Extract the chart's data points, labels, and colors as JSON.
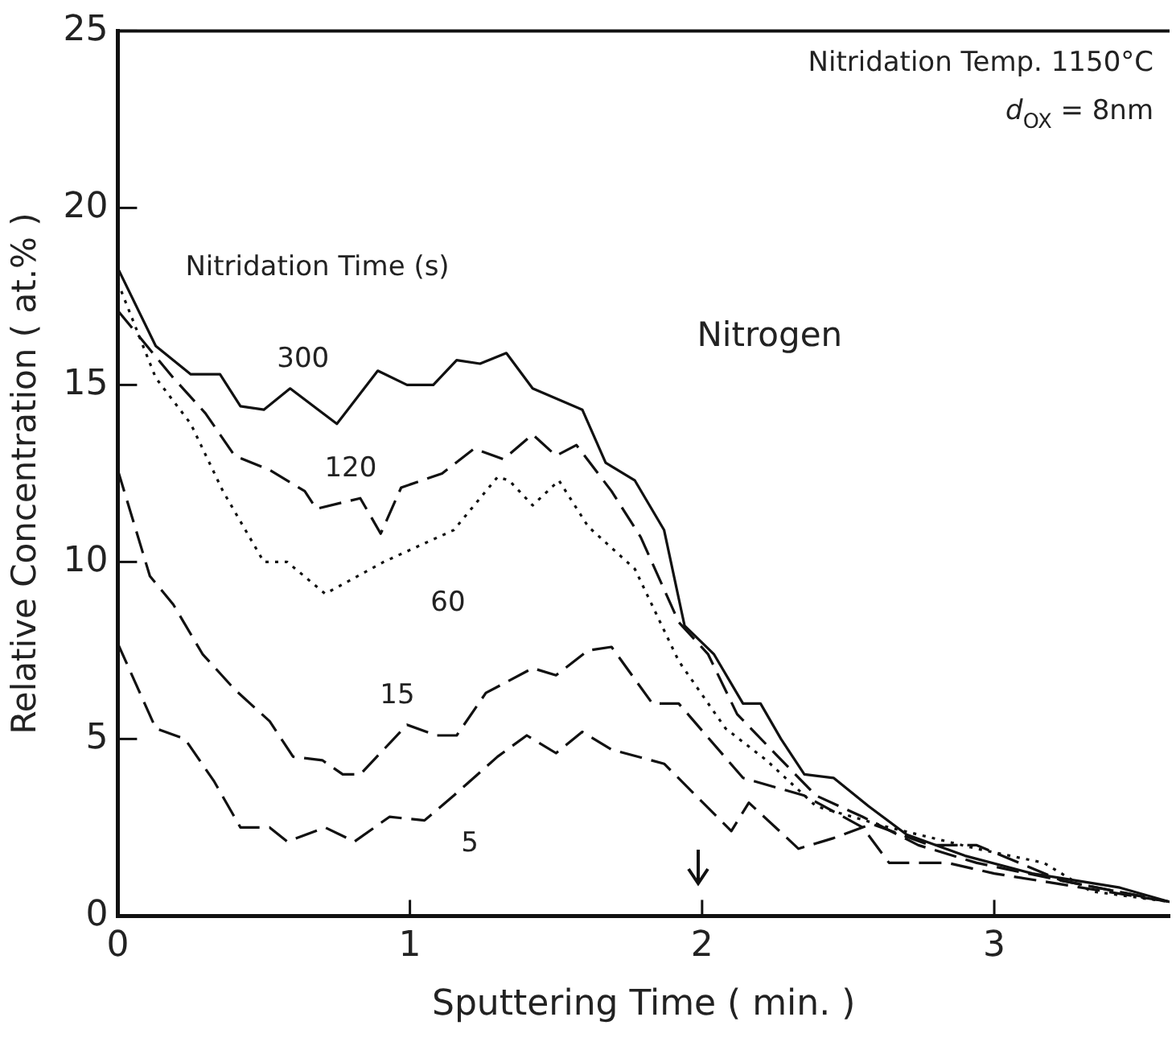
{
  "chart_data": {
    "type": "line",
    "xlabel": "Sputtering Time ( min. )",
    "ylabel": "Relative Concentration ( at.% )",
    "legend_title": "Nitridation Time (s)",
    "xlim": [
      0,
      3.6
    ],
    "xticks": [
      0,
      1,
      2,
      3
    ],
    "ylim": [
      0,
      25
    ],
    "yticks": [
      0,
      5,
      10,
      15,
      20,
      25
    ],
    "grid": false,
    "legend": false,
    "marker": "none",
    "series": [
      {
        "color": "#111111",
        "line_style": "solid",
        "x": [
          0,
          0.13,
          0.25,
          0.35,
          0.42,
          0.5,
          0.59,
          0.75,
          0.89,
          0.99,
          1.08,
          1.16,
          1.24,
          1.33,
          1.42,
          1.59,
          1.67,
          1.77,
          1.87,
          1.94,
          2.04,
          2.14,
          2.2,
          2.27,
          2.35,
          2.45,
          2.57,
          2.7,
          2.9,
          3.13,
          3.43,
          3.6
        ],
        "values": [
          18.3,
          16.1,
          15.3,
          15.3,
          14.4,
          14.3,
          14.9,
          13.9,
          15.4,
          15.0,
          15.0,
          15.7,
          15.6,
          15.9,
          14.9,
          14.3,
          12.8,
          12.3,
          10.9,
          8.2,
          7.4,
          6.0,
          6.0,
          5.0,
          4.0,
          3.9,
          3.1,
          2.3,
          1.7,
          1.2,
          0.8,
          0.4
        ]
      },
      {
        "color": "#111111",
        "line_style": "dashed",
        "x": [
          0,
          0.19,
          0.3,
          0.4,
          0.52,
          0.64,
          0.68,
          0.83,
          0.9,
          0.97,
          1.11,
          1.22,
          1.32,
          1.42,
          1.5,
          1.57,
          1.69,
          1.79,
          1.92,
          2.02,
          2.12,
          2.26,
          2.39,
          2.55,
          2.74,
          2.94,
          3.23,
          3.6
        ],
        "values": [
          17.1,
          15.2,
          14.2,
          13.0,
          12.6,
          12.0,
          11.5,
          11.8,
          10.8,
          12.1,
          12.5,
          13.2,
          12.9,
          13.6,
          13.0,
          13.3,
          12.0,
          10.7,
          8.3,
          7.4,
          5.7,
          4.5,
          3.4,
          2.8,
          2.0,
          1.5,
          1.0,
          0.4
        ]
      },
      {
        "color": "#111111",
        "line_style": "dotted",
        "x": [
          0,
          0.13,
          0.25,
          0.36,
          0.5,
          0.58,
          0.71,
          0.91,
          1.15,
          1.3,
          1.34,
          1.42,
          1.51,
          1.61,
          1.77,
          1.92,
          2.08,
          2.22,
          2.39,
          2.64,
          2.94,
          3.17,
          3.33,
          3.6
        ],
        "values": [
          17.9,
          15.2,
          13.9,
          12.0,
          10.0,
          10.0,
          9.1,
          10.0,
          10.9,
          12.4,
          12.3,
          11.6,
          12.3,
          11.0,
          9.8,
          7.2,
          5.3,
          4.4,
          3.1,
          2.5,
          1.9,
          1.5,
          0.7,
          0.4
        ]
      },
      {
        "color": "#111111",
        "line_style": "dashed",
        "x": [
          0,
          0.11,
          0.19,
          0.29,
          0.4,
          0.52,
          0.6,
          0.7,
          0.77,
          0.83,
          0.99,
          1.09,
          1.16,
          1.26,
          1.42,
          1.5,
          1.61,
          1.69,
          1.83,
          1.92,
          2.14,
          2.35,
          2.55,
          2.64,
          2.84,
          3.0,
          3.6
        ],
        "values": [
          12.6,
          9.6,
          8.8,
          7.4,
          6.4,
          5.5,
          4.5,
          4.4,
          4.0,
          4.0,
          5.4,
          5.1,
          5.1,
          6.3,
          7.0,
          6.8,
          7.5,
          7.6,
          6.0,
          6.0,
          3.9,
          3.4,
          2.5,
          1.5,
          1.5,
          1.2,
          0.4
        ]
      },
      {
        "color": "#111111",
        "line_style": "dashed",
        "x": [
          0,
          0.13,
          0.23,
          0.33,
          0.42,
          0.52,
          0.58,
          0.71,
          0.81,
          0.93,
          1.05,
          1.15,
          1.3,
          1.4,
          1.5,
          1.59,
          1.69,
          1.87,
          2.1,
          2.16,
          2.33,
          2.45,
          2.58,
          2.78,
          2.94,
          3.23,
          3.6
        ],
        "values": [
          7.7,
          5.3,
          5.0,
          3.8,
          2.5,
          2.5,
          2.1,
          2.5,
          2.1,
          2.8,
          2.7,
          3.4,
          4.5,
          5.1,
          4.6,
          5.2,
          4.7,
          4.3,
          2.4,
          3.2,
          1.9,
          2.2,
          2.6,
          2.0,
          2.0,
          1.0,
          0.4
        ]
      }
    ],
    "annotations": [
      "Nitridation Temp. 1150°C",
      "d$_{OX}$ = 8nm",
      "Nitrogen",
      {
        "text": "300",
        "x": 0.59,
        "y": 14.9
      },
      {
        "text": "120",
        "x": 0.83,
        "y": 11.8
      },
      {
        "text": "60",
        "x": 0.91,
        "y": 10.0
      },
      {
        "text": "15",
        "x": 0.99,
        "y": 5.4
      },
      {
        "text": "5",
        "x": 1.15,
        "y": 3.4
      }
    ]
  }
}
